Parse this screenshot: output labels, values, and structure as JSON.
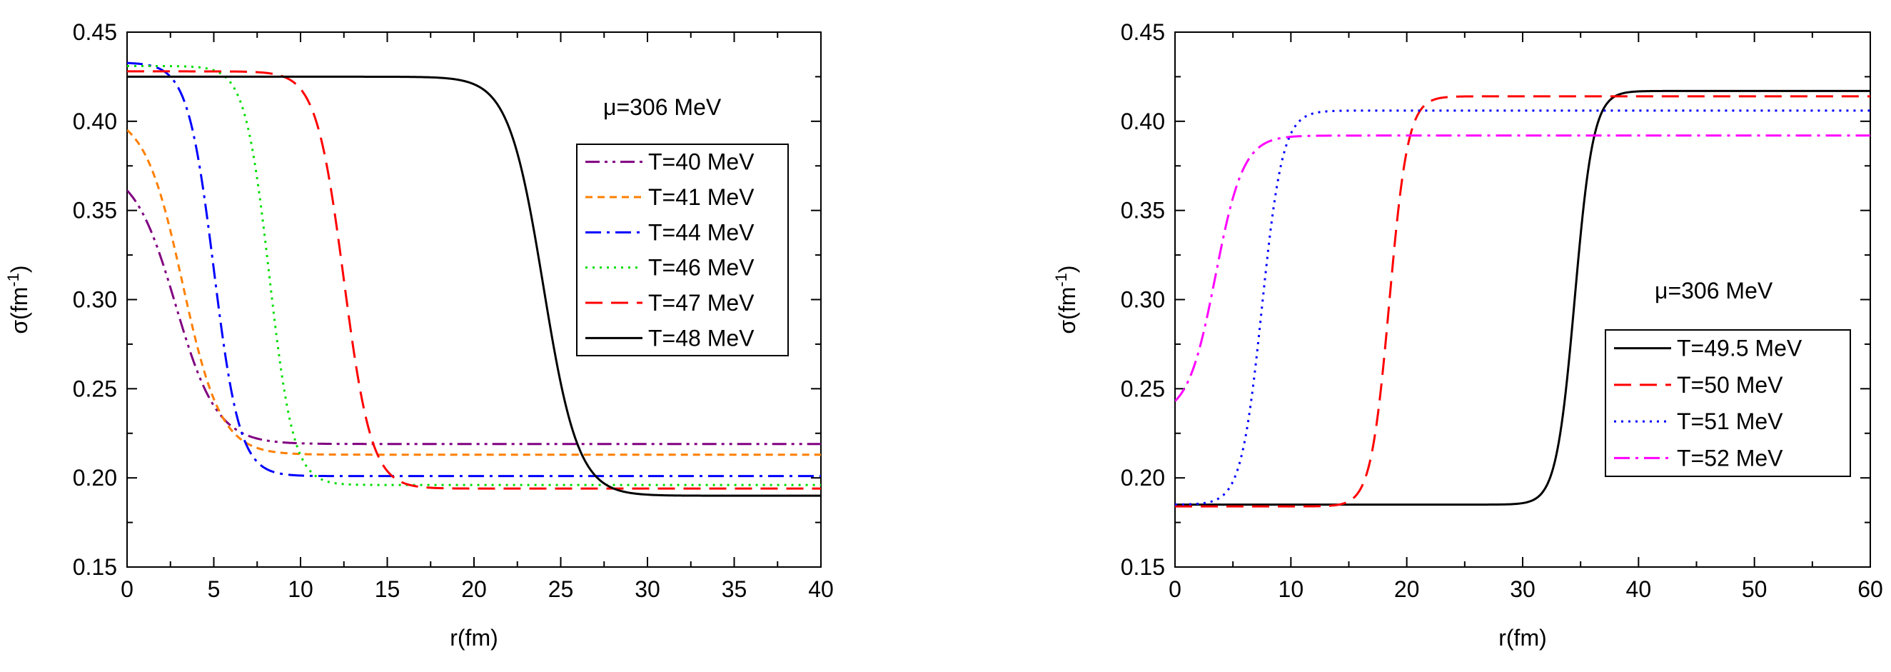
{
  "chart_data": [
    {
      "type": "line",
      "xlabel": "r(fm)",
      "ylabel": "σ(fm",
      "ylabel_sup": "-1",
      "ylabel_close": ")",
      "xlim": [
        0,
        40
      ],
      "ylim": [
        0.15,
        0.45
      ],
      "xticks": [
        "0",
        "5",
        "10",
        "15",
        "20",
        "25",
        "30",
        "35",
        "40"
      ],
      "yticks": [
        "0.15",
        "0.20",
        "0.25",
        "0.30",
        "0.35",
        "0.40",
        "0.45"
      ],
      "annotation": "μ=306 MeV",
      "legend_position": "upper-right",
      "series": [
        {
          "name": "T=40 MeV",
          "color": "#800080",
          "dash": "dashdotdot",
          "start": 0.375,
          "end": 0.219,
          "center": 2.8,
          "width": 1.2
        },
        {
          "name": "T=41 MeV",
          "color": "#ff7f00",
          "dash": "shortdash",
          "start": 0.405,
          "end": 0.213,
          "center": 3.2,
          "width": 1.1
        },
        {
          "name": "T=44 MeV",
          "color": "#0000ff",
          "dash": "dashdot",
          "start": 0.433,
          "end": 0.201,
          "center": 5.0,
          "width": 0.75
        },
        {
          "name": "T=46 MeV",
          "color": "#00dd00",
          "dash": "dot",
          "start": 0.431,
          "end": 0.196,
          "center": 8.2,
          "width": 0.7
        },
        {
          "name": "T=47 MeV",
          "color": "#ff0000",
          "dash": "dash",
          "start": 0.428,
          "end": 0.194,
          "center": 12.5,
          "width": 0.8
        },
        {
          "name": "T=48 MeV",
          "color": "#000000",
          "dash": "solid",
          "start": 0.425,
          "end": 0.19,
          "center": 24.0,
          "width": 1.0
        }
      ]
    },
    {
      "type": "line",
      "xlabel": "r(fm)",
      "ylabel": "σ(fm",
      "ylabel_sup": "-1",
      "ylabel_close": ")",
      "xlim": [
        0,
        60
      ],
      "ylim": [
        0.15,
        0.45
      ],
      "xticks": [
        "0",
        "10",
        "20",
        "30",
        "40",
        "50",
        "60"
      ],
      "yticks": [
        "0.15",
        "0.20",
        "0.25",
        "0.30",
        "0.35",
        "0.40",
        "0.45"
      ],
      "annotation": "μ=306 MeV",
      "legend_position": "middle-right",
      "series": [
        {
          "name": "T=49.5 MeV",
          "color": "#000000",
          "dash": "solid",
          "start": 0.185,
          "end": 0.417,
          "center": 34.5,
          "width": 0.8
        },
        {
          "name": "T=50 MeV",
          "color": "#ff0000",
          "dash": "dash",
          "start": 0.184,
          "end": 0.414,
          "center": 18.5,
          "width": 0.8
        },
        {
          "name": "T=51 MeV",
          "color": "#0000ff",
          "dash": "dot",
          "start": 0.185,
          "end": 0.406,
          "center": 7.5,
          "width": 0.9
        },
        {
          "name": "T=52 MeV",
          "color": "#ff00ff",
          "dash": "dashdot",
          "start": 0.235,
          "end": 0.392,
          "center": 3.5,
          "width": 1.2
        }
      ]
    }
  ]
}
